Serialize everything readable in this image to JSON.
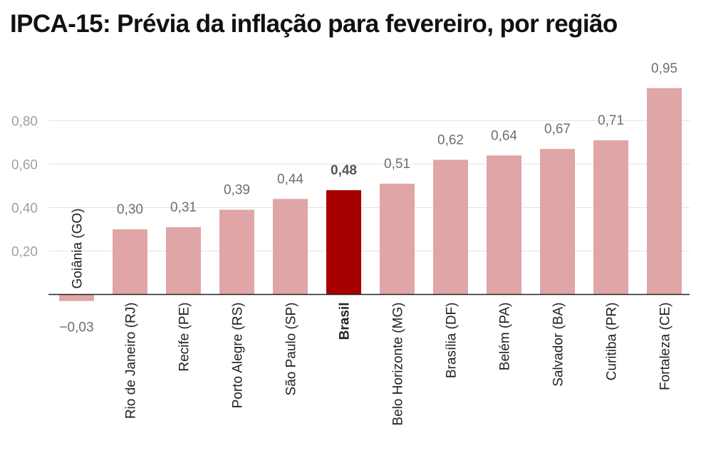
{
  "chart_data": {
    "type": "bar",
    "title": "IPCA-15: Prévia da inflação para fevereiro, por região",
    "xlabel": "",
    "ylabel": "",
    "categories": [
      "Goiânia (GO)",
      "Rio de Janeiro (RJ)",
      "Recife (PE)",
      "Porto Alegre (RS)",
      "São Paulo (SP)",
      "Brasil",
      "Belo Horizonte (MG)",
      "Brasília (DF)",
      "Belém (PA)",
      "Salvador (BA)",
      "Curitiba (PR)",
      "Fortaleza (CE)"
    ],
    "values": [
      -0.03,
      0.3,
      0.31,
      0.39,
      0.44,
      0.48,
      0.51,
      0.62,
      0.64,
      0.67,
      0.71,
      0.95
    ],
    "value_labels": [
      "−0,03",
      "0,30",
      "0,31",
      "0,39",
      "0,44",
      "0,48",
      "0,51",
      "0,62",
      "0,64",
      "0,67",
      "0,71",
      "0,95"
    ],
    "highlight_category": "Brasil",
    "yticks": [
      0.2,
      0.4,
      0.6,
      0.8
    ],
    "ytick_labels": [
      "0,20",
      "0,40",
      "0,60",
      "0,80"
    ],
    "ylim": [
      -0.06,
      1.0
    ],
    "grid": true,
    "legend": "none",
    "colors": {
      "bar": "#e0a5a6",
      "highlight": "#a80000",
      "grid": "#e3e3e3",
      "axis": "#222222"
    }
  }
}
